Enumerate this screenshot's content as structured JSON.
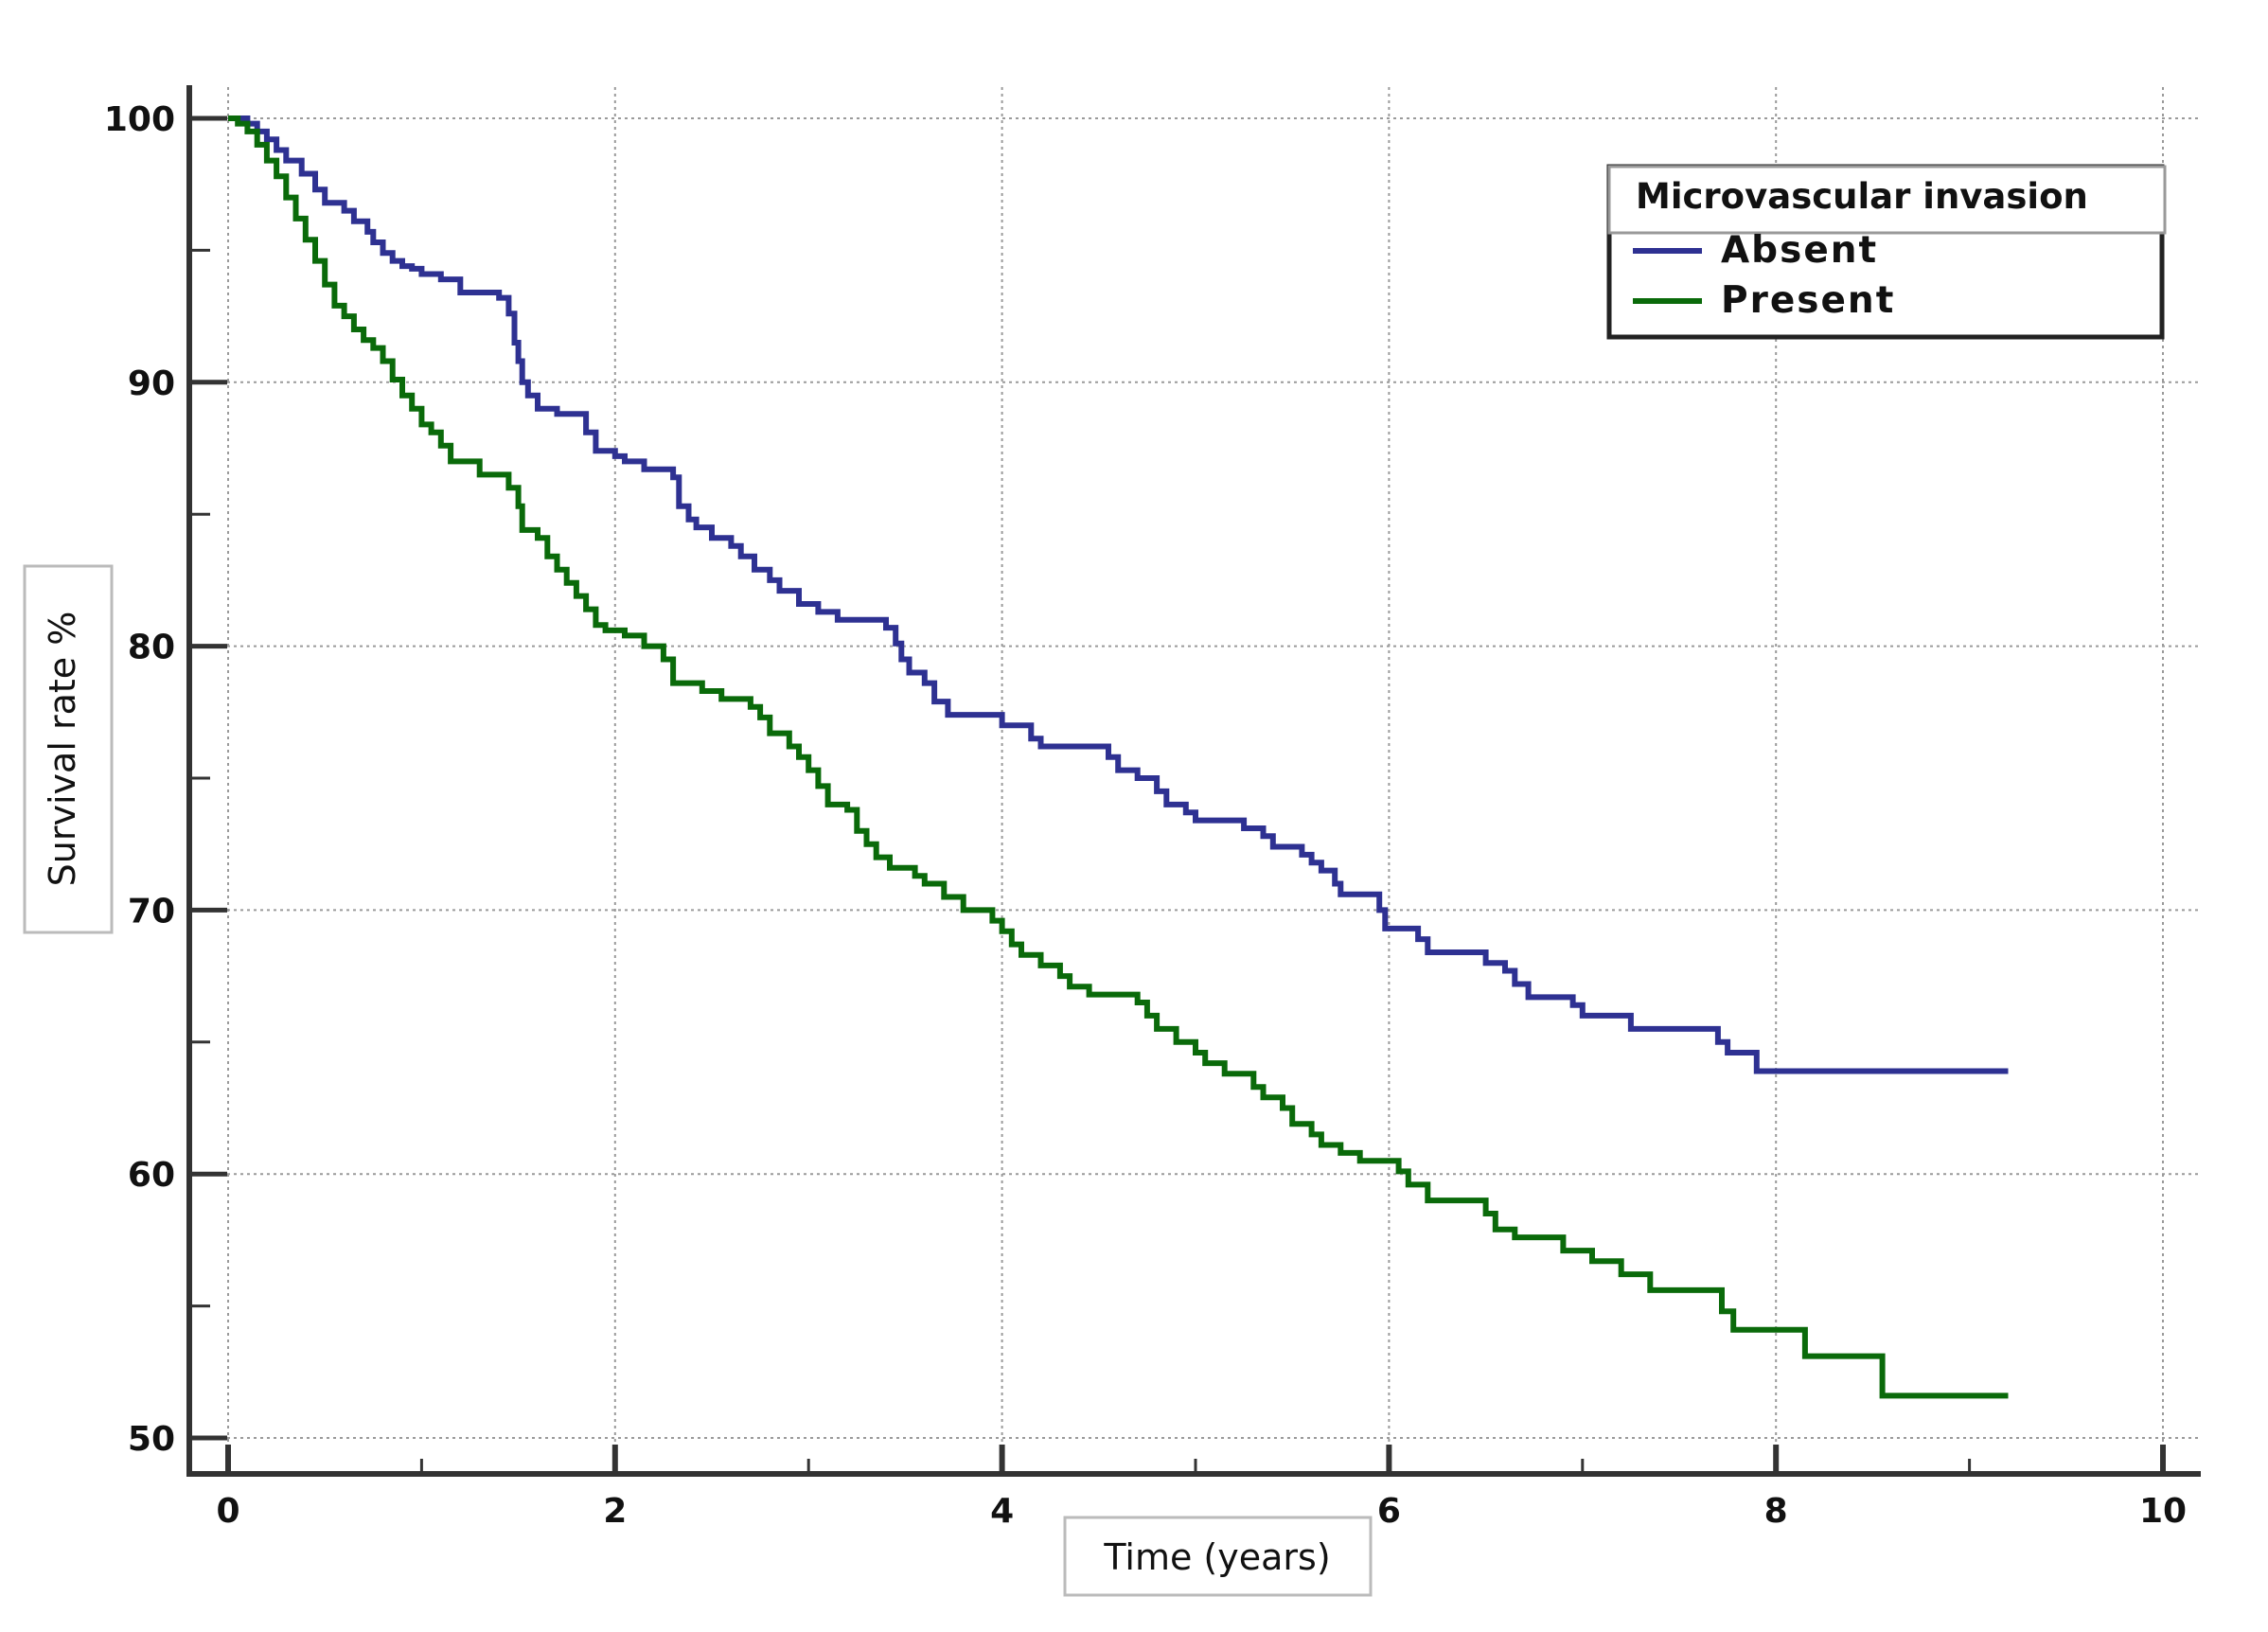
{
  "chart_data": {
    "type": "line",
    "step": true,
    "xlabel": "Time (years)",
    "ylabel": "Survival rate %",
    "xlim": [
      0,
      10
    ],
    "ylim": [
      50,
      100
    ],
    "x_ticks": [
      "0",
      "2",
      "4",
      "6",
      "8",
      "10"
    ],
    "y_ticks": [
      "50",
      "60",
      "70",
      "80",
      "90",
      "100"
    ],
    "grid": true,
    "legend": {
      "title": "Microvascular invasion",
      "placement": "top-right"
    },
    "colors": {
      "axis": "#333333",
      "grid": "#9a9a9a"
    },
    "series": [
      {
        "name": "Absent",
        "color": "#2e3192",
        "points": [
          [
            0,
            100
          ],
          [
            0.1,
            99.8
          ],
          [
            0.15,
            99.5
          ],
          [
            0.2,
            99.2
          ],
          [
            0.25,
            98.8
          ],
          [
            0.3,
            98.4
          ],
          [
            0.38,
            97.9
          ],
          [
            0.45,
            97.3
          ],
          [
            0.5,
            96.8
          ],
          [
            0.6,
            96.5
          ],
          [
            0.65,
            96.1
          ],
          [
            0.72,
            95.7
          ],
          [
            0.75,
            95.3
          ],
          [
            0.8,
            94.9
          ],
          [
            0.85,
            94.6
          ],
          [
            0.9,
            94.4
          ],
          [
            0.95,
            94.3
          ],
          [
            1.0,
            94.1
          ],
          [
            1.1,
            93.9
          ],
          [
            1.2,
            93.4
          ],
          [
            1.4,
            93.2
          ],
          [
            1.45,
            92.6
          ],
          [
            1.48,
            91.5
          ],
          [
            1.5,
            90.8
          ],
          [
            1.52,
            90.0
          ],
          [
            1.55,
            89.5
          ],
          [
            1.6,
            89.0
          ],
          [
            1.7,
            88.8
          ],
          [
            1.85,
            88.1
          ],
          [
            1.9,
            87.4
          ],
          [
            2.0,
            87.2
          ],
          [
            2.05,
            87.0
          ],
          [
            2.15,
            86.7
          ],
          [
            2.3,
            86.4
          ],
          [
            2.33,
            85.3
          ],
          [
            2.38,
            84.8
          ],
          [
            2.42,
            84.5
          ],
          [
            2.5,
            84.1
          ],
          [
            2.6,
            83.8
          ],
          [
            2.65,
            83.4
          ],
          [
            2.72,
            82.9
          ],
          [
            2.8,
            82.5
          ],
          [
            2.85,
            82.1
          ],
          [
            2.95,
            81.6
          ],
          [
            3.05,
            81.3
          ],
          [
            3.15,
            81.0
          ],
          [
            3.4,
            80.7
          ],
          [
            3.45,
            80.1
          ],
          [
            3.48,
            79.5
          ],
          [
            3.52,
            79.0
          ],
          [
            3.6,
            78.6
          ],
          [
            3.65,
            77.9
          ],
          [
            3.72,
            77.4
          ],
          [
            4.0,
            77.0
          ],
          [
            4.15,
            76.5
          ],
          [
            4.2,
            76.2
          ],
          [
            4.55,
            75.8
          ],
          [
            4.6,
            75.3
          ],
          [
            4.7,
            75.0
          ],
          [
            4.8,
            74.5
          ],
          [
            4.85,
            74.0
          ],
          [
            4.95,
            73.7
          ],
          [
            5.0,
            73.4
          ],
          [
            5.25,
            73.1
          ],
          [
            5.35,
            72.8
          ],
          [
            5.4,
            72.4
          ],
          [
            5.55,
            72.1
          ],
          [
            5.6,
            71.8
          ],
          [
            5.65,
            71.5
          ],
          [
            5.72,
            71.0
          ],
          [
            5.75,
            70.6
          ],
          [
            5.95,
            70.0
          ],
          [
            5.98,
            69.3
          ],
          [
            6.15,
            68.9
          ],
          [
            6.2,
            68.4
          ],
          [
            6.5,
            68.0
          ],
          [
            6.6,
            67.7
          ],
          [
            6.65,
            67.2
          ],
          [
            6.72,
            66.7
          ],
          [
            6.95,
            66.4
          ],
          [
            7.0,
            66.0
          ],
          [
            7.25,
            65.5
          ],
          [
            7.7,
            65.0
          ],
          [
            7.75,
            64.6
          ],
          [
            7.9,
            63.9
          ],
          [
            9.2,
            63.9
          ]
        ]
      },
      {
        "name": "Present",
        "color": "#0a6a0a",
        "points": [
          [
            0,
            100
          ],
          [
            0.05,
            99.8
          ],
          [
            0.1,
            99.5
          ],
          [
            0.15,
            99.0
          ],
          [
            0.2,
            98.4
          ],
          [
            0.25,
            97.8
          ],
          [
            0.3,
            97.0
          ],
          [
            0.35,
            96.2
          ],
          [
            0.4,
            95.4
          ],
          [
            0.45,
            94.6
          ],
          [
            0.5,
            93.7
          ],
          [
            0.55,
            92.9
          ],
          [
            0.6,
            92.5
          ],
          [
            0.65,
            92.0
          ],
          [
            0.7,
            91.6
          ],
          [
            0.75,
            91.3
          ],
          [
            0.8,
            90.8
          ],
          [
            0.85,
            90.1
          ],
          [
            0.9,
            89.5
          ],
          [
            0.95,
            89.0
          ],
          [
            1.0,
            88.4
          ],
          [
            1.05,
            88.1
          ],
          [
            1.1,
            87.6
          ],
          [
            1.15,
            87.0
          ],
          [
            1.3,
            86.5
          ],
          [
            1.45,
            86.0
          ],
          [
            1.5,
            85.3
          ],
          [
            1.52,
            84.4
          ],
          [
            1.6,
            84.1
          ],
          [
            1.65,
            83.4
          ],
          [
            1.7,
            82.9
          ],
          [
            1.75,
            82.4
          ],
          [
            1.8,
            81.9
          ],
          [
            1.85,
            81.4
          ],
          [
            1.9,
            80.8
          ],
          [
            1.95,
            80.6
          ],
          [
            2.05,
            80.4
          ],
          [
            2.15,
            80.0
          ],
          [
            2.25,
            79.5
          ],
          [
            2.3,
            78.6
          ],
          [
            2.45,
            78.3
          ],
          [
            2.55,
            78.0
          ],
          [
            2.7,
            77.7
          ],
          [
            2.75,
            77.3
          ],
          [
            2.8,
            76.7
          ],
          [
            2.9,
            76.2
          ],
          [
            2.95,
            75.8
          ],
          [
            3.0,
            75.3
          ],
          [
            3.05,
            74.7
          ],
          [
            3.1,
            74.0
          ],
          [
            3.2,
            73.8
          ],
          [
            3.25,
            73.0
          ],
          [
            3.3,
            72.5
          ],
          [
            3.35,
            72.0
          ],
          [
            3.42,
            71.6
          ],
          [
            3.55,
            71.3
          ],
          [
            3.6,
            71.0
          ],
          [
            3.7,
            70.5
          ],
          [
            3.8,
            70.0
          ],
          [
            3.95,
            69.6
          ],
          [
            4.0,
            69.2
          ],
          [
            4.05,
            68.7
          ],
          [
            4.1,
            68.3
          ],
          [
            4.2,
            67.9
          ],
          [
            4.3,
            67.5
          ],
          [
            4.35,
            67.1
          ],
          [
            4.45,
            66.8
          ],
          [
            4.7,
            66.5
          ],
          [
            4.75,
            66.0
          ],
          [
            4.8,
            65.5
          ],
          [
            4.9,
            65.0
          ],
          [
            5.0,
            64.6
          ],
          [
            5.05,
            64.2
          ],
          [
            5.15,
            63.8
          ],
          [
            5.3,
            63.3
          ],
          [
            5.35,
            62.9
          ],
          [
            5.45,
            62.5
          ],
          [
            5.5,
            61.9
          ],
          [
            5.6,
            61.5
          ],
          [
            5.65,
            61.1
          ],
          [
            5.75,
            60.8
          ],
          [
            5.85,
            60.5
          ],
          [
            6.05,
            60.1
          ],
          [
            6.1,
            59.6
          ],
          [
            6.2,
            59.0
          ],
          [
            6.5,
            58.5
          ],
          [
            6.55,
            57.9
          ],
          [
            6.65,
            57.6
          ],
          [
            6.9,
            57.1
          ],
          [
            7.05,
            56.7
          ],
          [
            7.2,
            56.2
          ],
          [
            7.35,
            55.6
          ],
          [
            7.72,
            54.8
          ],
          [
            7.78,
            54.1
          ],
          [
            8.15,
            53.1
          ],
          [
            8.55,
            51.6
          ],
          [
            9.2,
            51.6
          ]
        ]
      }
    ]
  }
}
